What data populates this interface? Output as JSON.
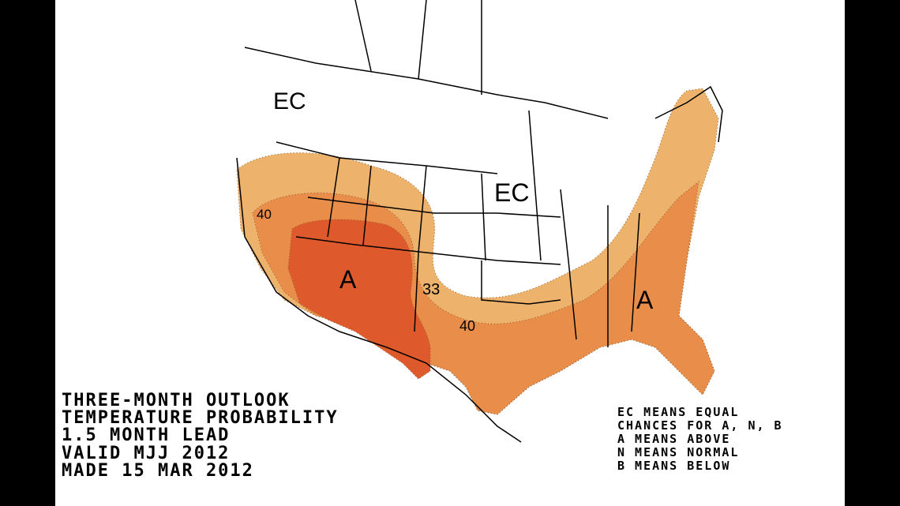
{
  "title_lines": [
    "THREE-MONTH OUTLOOK",
    "TEMPERATURE PROBABILITY",
    "1.5 MONTH LEAD",
    "VALID MJJ 2012",
    "MADE 15 MAR 2012"
  ],
  "legend_lines": [
    "EC MEANS EQUAL",
    "CHANCES FOR A, N, B",
    "A MEANS ABOVE",
    "N MEANS NORMAL",
    "B MEANS BELOW"
  ],
  "map_labels": {
    "ec_northwest": "EC",
    "ec_central": "EC",
    "above_southwest": "A",
    "above_southeast": "A",
    "contour_33": "33",
    "contour_40_west": "40",
    "contour_40_south": "40"
  },
  "colors": {
    "above_33_40": "#EDB26C",
    "above_40_50": "#E98D4A",
    "above_50_60": "#DE5A2C",
    "background": "#FFFFFF",
    "letterbox": "#000000"
  }
}
